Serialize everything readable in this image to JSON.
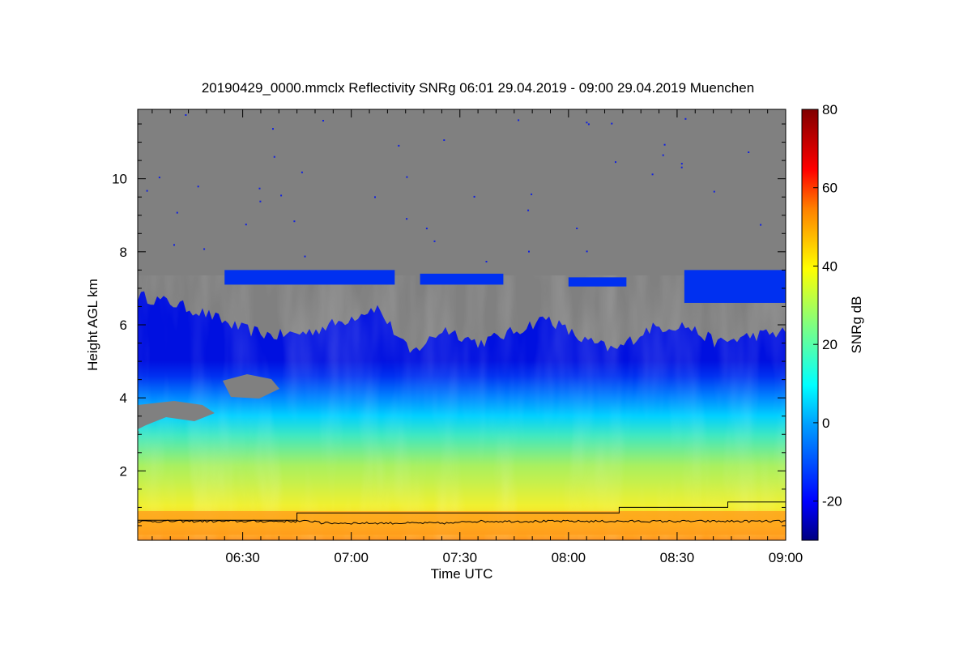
{
  "chart_data": {
    "type": "heatmap",
    "title": "20190429_0000.mmclx Reflectivity SNRg   06:01 29.04.2019 - 09:00 29.04.2019 Muenchen",
    "xlabel": "Time UTC",
    "ylabel": "Height AGL km",
    "colorbar_label": "SNRg dB",
    "x_range": [
      "06:01",
      "09:00"
    ],
    "y_range_km": [
      0.1,
      11.9
    ],
    "x_ticks": [
      {
        "label": "06:30",
        "minutes": 30
      },
      {
        "label": "07:00",
        "minutes": 60
      },
      {
        "label": "07:30",
        "minutes": 90
      },
      {
        "label": "08:00",
        "minutes": 120
      },
      {
        "label": "08:30",
        "minutes": 150
      },
      {
        "label": "09:00",
        "minutes": 180
      }
    ],
    "y_ticks": [
      {
        "label": "2",
        "value": 2
      },
      {
        "label": "4",
        "value": 4
      },
      {
        "label": "6",
        "value": 6
      },
      {
        "label": "8",
        "value": 8
      },
      {
        "label": "10",
        "value": 10
      }
    ],
    "colorbar": {
      "range": [
        -30,
        80
      ],
      "ticks": [
        {
          "label": "-20",
          "value": -20
        },
        {
          "label": "0",
          "value": 0
        },
        {
          "label": "20",
          "value": 20
        },
        {
          "label": "40",
          "value": 40
        },
        {
          "label": "60",
          "value": 60
        },
        {
          "label": "80",
          "value": 80
        }
      ],
      "colors": [
        "#000080",
        "#0000ff",
        "#00a0ff",
        "#00ffff",
        "#80ff80",
        "#ffff00",
        "#ff8000",
        "#ff0000",
        "#800000"
      ]
    },
    "no_signal_color": "#808080",
    "layers": {
      "cloud_top_km": [
        6.8,
        6.6,
        6.3,
        5.9,
        5.7,
        5.8,
        6.1,
        6.5,
        5.2,
        5.9,
        5.5,
        5.8,
        6.2,
        5.6,
        5.3,
        5.9,
        6.0,
        5.5,
        5.7,
        5.8
      ],
      "upper_cloud_layer_km": [
        7.1,
        7.5
      ],
      "ice_layer_top_km": 3.4,
      "bright_band_km": 0.8,
      "melting_level_line": [
        {
          "minutes": 0,
          "km": 0.65
        },
        {
          "minutes": 45,
          "km": 0.65
        },
        {
          "minutes": 45,
          "km": 0.85
        },
        {
          "minutes": 134,
          "km": 0.85
        },
        {
          "minutes": 134,
          "km": 1.0
        },
        {
          "minutes": 164,
          "km": 1.0
        },
        {
          "minutes": 164,
          "km": 1.15
        },
        {
          "minutes": 180,
          "km": 1.15
        }
      ],
      "cloud_base_line_km": 0.62
    }
  }
}
